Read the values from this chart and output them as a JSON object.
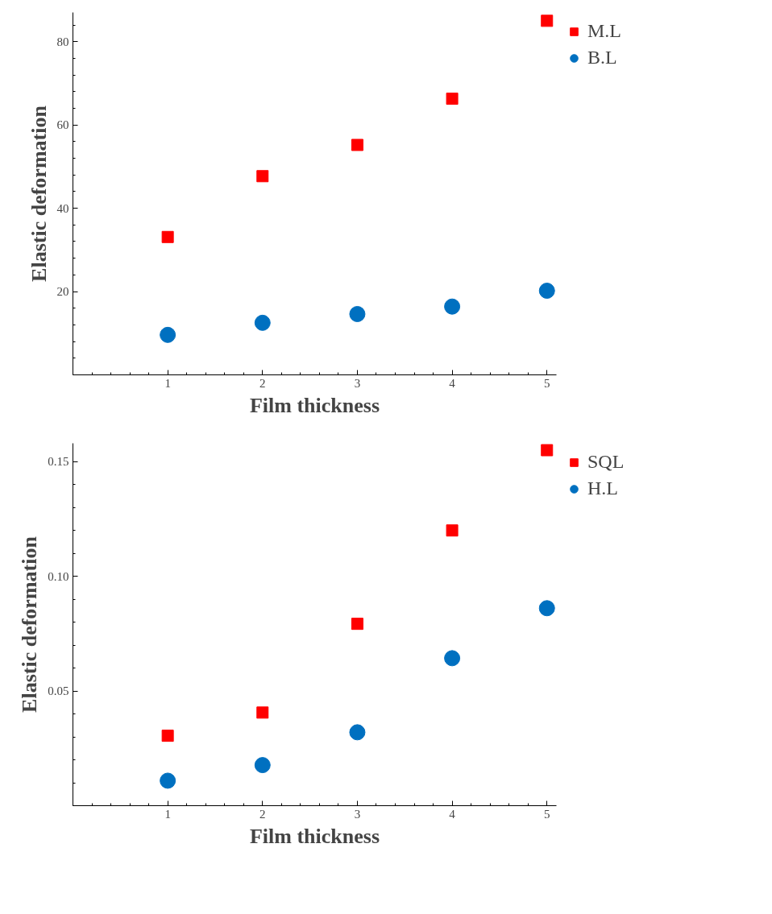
{
  "chart_data": [
    {
      "type": "scatter",
      "xlabel": "Film thickness",
      "ylabel": "Elastic deformation",
      "x": [
        1,
        2,
        3,
        4,
        5
      ],
      "xlim": [
        0,
        5.1
      ],
      "ylim": [
        0,
        87
      ],
      "xticks": [
        1,
        2,
        3,
        4,
        5
      ],
      "yticks": [
        20,
        40,
        60,
        80
      ],
      "legend": "right",
      "series": [
        {
          "name": "M.L",
          "color": "#ff0000",
          "marker": "square",
          "values": [
            33.1,
            47.7,
            55.2,
            66.3,
            85.0
          ]
        },
        {
          "name": "B.L",
          "color": "#0070c0",
          "marker": "circle",
          "values": [
            9.6,
            12.5,
            14.6,
            16.4,
            20.2
          ]
        }
      ]
    },
    {
      "type": "scatter",
      "xlabel": "Film thickness",
      "ylabel": "Elastic deformation",
      "x": [
        1,
        2,
        3,
        4,
        5
      ],
      "xlim": [
        0,
        5.1
      ],
      "ylim": [
        0,
        0.158
      ],
      "xticks": [
        1,
        2,
        3,
        4,
        5
      ],
      "yticks": [
        0.05,
        {
          "value": 0.1,
          "label": "0.10"
        },
        0.15
      ],
      "legend": "right",
      "series": [
        {
          "name": "SQL",
          "color": "#ff0000",
          "marker": "square",
          "values": [
            0.0305,
            0.0406,
            0.0793,
            0.12,
            0.155
          ]
        },
        {
          "name": "H.L",
          "color": "#0070c0",
          "marker": "circle",
          "values": [
            0.0109,
            0.0177,
            0.032,
            0.0643,
            0.0861
          ]
        }
      ]
    }
  ]
}
